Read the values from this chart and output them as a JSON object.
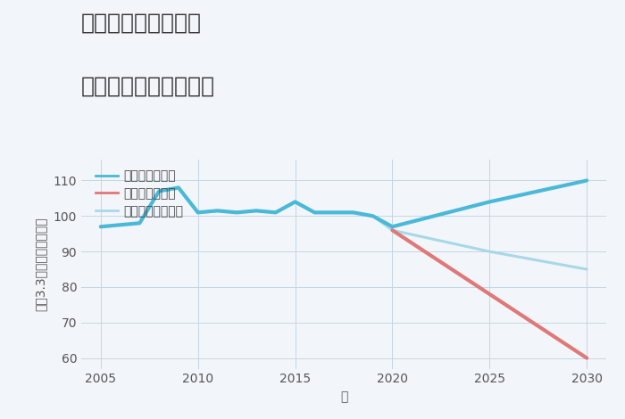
{
  "title_line1": "兵庫県姫路市今宿の",
  "title_line2": "中古戸建ての価格推移",
  "xlabel": "年",
  "ylabel": "坪（3.3㎡）単価（万円）",
  "background_color": "#f2f6fb",
  "plot_bg_color": "#f2f6fb",
  "ylim": [
    57,
    116
  ],
  "yticks": [
    60,
    70,
    80,
    90,
    100,
    110
  ],
  "xticks": [
    2005,
    2010,
    2015,
    2020,
    2025,
    2030
  ],
  "good_scenario": {
    "x": [
      2005,
      2006,
      2007,
      2008,
      2009,
      2010,
      2011,
      2012,
      2013,
      2014,
      2015,
      2016,
      2017,
      2018,
      2019,
      2020,
      2025,
      2030
    ],
    "y": [
      97,
      97.5,
      98,
      107,
      108,
      101,
      101.5,
      101,
      101.5,
      101,
      104,
      101,
      101,
      101,
      100,
      97,
      104,
      110
    ],
    "color": "#4ab8d8",
    "linewidth": 3.0,
    "label": "グッドシナリオ"
  },
  "bad_scenario": {
    "x": [
      2020,
      2025,
      2030
    ],
    "y": [
      96,
      78,
      60
    ],
    "color": "#e07878",
    "linewidth": 3.0,
    "label": "バッドシナリオ"
  },
  "normal_scenario": {
    "x": [
      2005,
      2006,
      2007,
      2008,
      2009,
      2010,
      2011,
      2012,
      2013,
      2014,
      2015,
      2016,
      2017,
      2018,
      2019,
      2020,
      2025,
      2030
    ],
    "y": [
      97,
      97.5,
      98,
      107,
      108,
      101,
      101.5,
      101,
      101.5,
      101,
      104,
      101,
      101,
      101,
      100,
      96,
      90,
      85
    ],
    "color": "#a8d8e8",
    "linewidth": 2.2,
    "label": "ノーマルシナリオ"
  },
  "grid_color": "#c5d5e5",
  "title_fontsize": 18,
  "axis_label_fontsize": 10,
  "tick_fontsize": 10,
  "legend_fontsize": 10
}
